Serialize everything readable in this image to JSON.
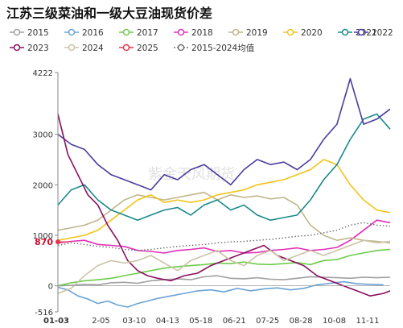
{
  "chart_data": {
    "type": "line",
    "title": "江苏三级菜油和一级大豆油现货价差",
    "ylim": [
      -516,
      4222
    ],
    "y_ticks": [
      -516,
      0,
      1000,
      2000,
      3000,
      4222
    ],
    "x_ticks": [
      "01-03",
      "2-05",
      "03-10",
      "04-13",
      "05-18",
      "06-21",
      "07-25",
      "08-28",
      "10-08",
      "11-11"
    ],
    "marker_value": 870,
    "marker_label": "870",
    "legend_position": "top",
    "grid": false,
    "watermark": "紫金天风期货",
    "series": [
      {
        "name": "2015",
        "color": "#a0a0a0",
        "style": "solid",
        "x": [
          0,
          0.04,
          0.08,
          0.12,
          0.16,
          0.2,
          0.24,
          0.28,
          0.32,
          0.36,
          0.4,
          0.44,
          0.48,
          0.52,
          0.56,
          0.6,
          0.64,
          0.68,
          0.72,
          0.76,
          0.8,
          0.84,
          0.88,
          0.92,
          0.96,
          1.0
        ],
        "values": [
          0,
          10,
          30,
          20,
          60,
          70,
          50,
          100,
          120,
          140,
          120,
          180,
          200,
          150,
          140,
          160,
          130,
          120,
          150,
          180,
          170,
          160,
          150,
          170,
          160,
          170
        ]
      },
      {
        "name": "2016",
        "color": "#6ba3d6",
        "style": "solid",
        "x": [
          0,
          0.03,
          0.06,
          0.09,
          0.12,
          0.15,
          0.18,
          0.21,
          0.24,
          0.27,
          0.3,
          0.34,
          0.38,
          0.42,
          0.46,
          0.5,
          0.54,
          0.58,
          0.62,
          0.66,
          0.7,
          0.74,
          0.78,
          0.82,
          0.86,
          0.9,
          0.94,
          0.98
        ],
        "values": [
          -30,
          -80,
          -200,
          -260,
          -350,
          -300,
          -380,
          -420,
          -350,
          -300,
          -250,
          -200,
          -150,
          -100,
          -80,
          -120,
          -50,
          -100,
          -60,
          -40,
          -80,
          -50,
          20,
          50,
          80,
          40,
          30,
          20
        ]
      },
      {
        "name": "2017",
        "color": "#6dcc4a",
        "style": "solid",
        "x": [
          0,
          0.04,
          0.08,
          0.12,
          0.16,
          0.2,
          0.24,
          0.28,
          0.32,
          0.36,
          0.4,
          0.44,
          0.48,
          0.52,
          0.56,
          0.6,
          0.64,
          0.68,
          0.72,
          0.76,
          0.8,
          0.84,
          0.88,
          0.92,
          0.96,
          1.0
        ],
        "values": [
          0,
          60,
          100,
          120,
          150,
          200,
          250,
          300,
          350,
          380,
          400,
          420,
          450,
          440,
          470,
          430,
          420,
          440,
          460,
          420,
          500,
          520,
          600,
          650,
          700,
          720
        ]
      },
      {
        "name": "2018",
        "color": "#e22fb6",
        "style": "solid",
        "x": [
          0,
          0.04,
          0.08,
          0.12,
          0.16,
          0.2,
          0.24,
          0.28,
          0.32,
          0.36,
          0.4,
          0.44,
          0.48,
          0.52,
          0.56,
          0.6,
          0.64,
          0.68,
          0.72,
          0.76,
          0.8,
          0.84,
          0.88,
          0.92,
          0.96,
          1.0
        ],
        "values": [
          850,
          880,
          900,
          820,
          800,
          780,
          700,
          680,
          650,
          700,
          720,
          750,
          680,
          700,
          650,
          660,
          700,
          720,
          750,
          700,
          720,
          760,
          900,
          1100,
          1300,
          1250
        ]
      },
      {
        "name": "2019",
        "color": "#bfb68a",
        "style": "solid",
        "x": [
          0,
          0.04,
          0.08,
          0.12,
          0.16,
          0.2,
          0.24,
          0.28,
          0.32,
          0.36,
          0.4,
          0.44,
          0.48,
          0.52,
          0.56,
          0.6,
          0.64,
          0.68,
          0.72,
          0.76,
          0.8,
          0.84,
          0.88,
          0.92,
          0.96,
          1.0
        ],
        "values": [
          1100,
          1150,
          1200,
          1300,
          1500,
          1700,
          1800,
          1750,
          1700,
          1750,
          1800,
          1850,
          1700,
          1800,
          1750,
          1780,
          1720,
          1750,
          1600,
          1200,
          1000,
          900,
          950,
          900,
          880,
          850
        ]
      },
      {
        "name": "2020",
        "color": "#f3c318",
        "style": "solid",
        "x": [
          0,
          0.04,
          0.08,
          0.12,
          0.16,
          0.2,
          0.24,
          0.28,
          0.32,
          0.36,
          0.4,
          0.44,
          0.48,
          0.52,
          0.56,
          0.6,
          0.64,
          0.68,
          0.72,
          0.76,
          0.8,
          0.84,
          0.88,
          0.92,
          0.96,
          1.0
        ],
        "values": [
          900,
          950,
          1000,
          1100,
          1300,
          1500,
          1700,
          1800,
          1650,
          1700,
          1650,
          1700,
          1800,
          1850,
          1900,
          2000,
          2050,
          2100,
          2200,
          2300,
          2500,
          2400,
          2000,
          1700,
          1500,
          1450
        ]
      },
      {
        "name": "2021",
        "color": "#1a8a8a",
        "style": "solid",
        "x": [
          0,
          0.04,
          0.08,
          0.12,
          0.16,
          0.2,
          0.24,
          0.28,
          0.32,
          0.36,
          0.4,
          0.44,
          0.48,
          0.52,
          0.56,
          0.6,
          0.64,
          0.68,
          0.72,
          0.76,
          0.8,
          0.84,
          0.88,
          0.92,
          0.96,
          1.0
        ],
        "values": [
          1600,
          1900,
          2000,
          1700,
          1500,
          1400,
          1300,
          1400,
          1500,
          1550,
          1400,
          1600,
          1700,
          1500,
          1600,
          1400,
          1300,
          1350,
          1400,
          1700,
          2100,
          2400,
          2900,
          3300,
          3400,
          3100
        ]
      },
      {
        "name": "2022",
        "color": "#4b3c9c",
        "style": "solid",
        "x": [
          0,
          0.04,
          0.08,
          0.12,
          0.16,
          0.2,
          0.24,
          0.28,
          0.32,
          0.36,
          0.4,
          0.44,
          0.48,
          0.52,
          0.56,
          0.6,
          0.64,
          0.68,
          0.72,
          0.76,
          0.8,
          0.84,
          0.88,
          0.92,
          0.96,
          1.0
        ],
        "values": [
          3000,
          2800,
          2700,
          2400,
          2200,
          2100,
          2000,
          1900,
          2200,
          2100,
          2300,
          2400,
          2200,
          2000,
          2300,
          2500,
          2400,
          2450,
          2300,
          2500,
          2900,
          3200,
          4100,
          3200,
          3300,
          3500
        ]
      },
      {
        "name": "2023",
        "color": "#8a0e5e",
        "style": "solid",
        "x": [
          0,
          0.03,
          0.06,
          0.09,
          0.12,
          0.15,
          0.18,
          0.21,
          0.24,
          0.27,
          0.3,
          0.34,
          0.38,
          0.42,
          0.46,
          0.5,
          0.54,
          0.58,
          0.62,
          0.66,
          0.7,
          0.74,
          0.78,
          0.82,
          0.86,
          0.9,
          0.94,
          0.98,
          1.0
        ],
        "values": [
          3400,
          2600,
          2200,
          1800,
          1600,
          1200,
          900,
          500,
          300,
          200,
          150,
          100,
          200,
          250,
          400,
          500,
          600,
          700,
          800,
          600,
          500,
          400,
          200,
          100,
          0,
          -100,
          -200,
          -150,
          -100
        ]
      },
      {
        "name": "2024",
        "color": "#cdc3a5",
        "style": "solid",
        "x": [
          0,
          0.04,
          0.08,
          0.12,
          0.16,
          0.2,
          0.24,
          0.28,
          0.32,
          0.36,
          0.4,
          0.44,
          0.48,
          0.52,
          0.56,
          0.6,
          0.64,
          0.68,
          0.72,
          0.76,
          0.8,
          0.84,
          0.88,
          0.92,
          0.96,
          1.0
        ],
        "values": [
          -150,
          -50,
          200,
          400,
          500,
          450,
          500,
          600,
          450,
          300,
          500,
          600,
          700,
          500,
          400,
          600,
          700,
          500,
          600,
          700,
          600,
          700,
          800,
          900,
          850,
          880
        ]
      },
      {
        "name": "2025",
        "color": "#e2354a",
        "style": "solid",
        "x": [
          0
        ],
        "values": [
          870
        ]
      },
      {
        "name": "2015-2024均值",
        "color": "#707070",
        "style": "dotted",
        "x": [
          0,
          0.04,
          0.08,
          0.12,
          0.16,
          0.2,
          0.24,
          0.28,
          0.32,
          0.36,
          0.4,
          0.44,
          0.48,
          0.52,
          0.56,
          0.6,
          0.64,
          0.68,
          0.72,
          0.76,
          0.8,
          0.84,
          0.88,
          0.92,
          0.96,
          1.0
        ],
        "values": [
          800,
          850,
          820,
          780,
          760,
          720,
          700,
          720,
          750,
          780,
          800,
          820,
          850,
          870,
          880,
          900,
          920,
          950,
          980,
          1000,
          1050,
          1100,
          1200,
          1250,
          1200,
          1180
        ]
      }
    ]
  }
}
